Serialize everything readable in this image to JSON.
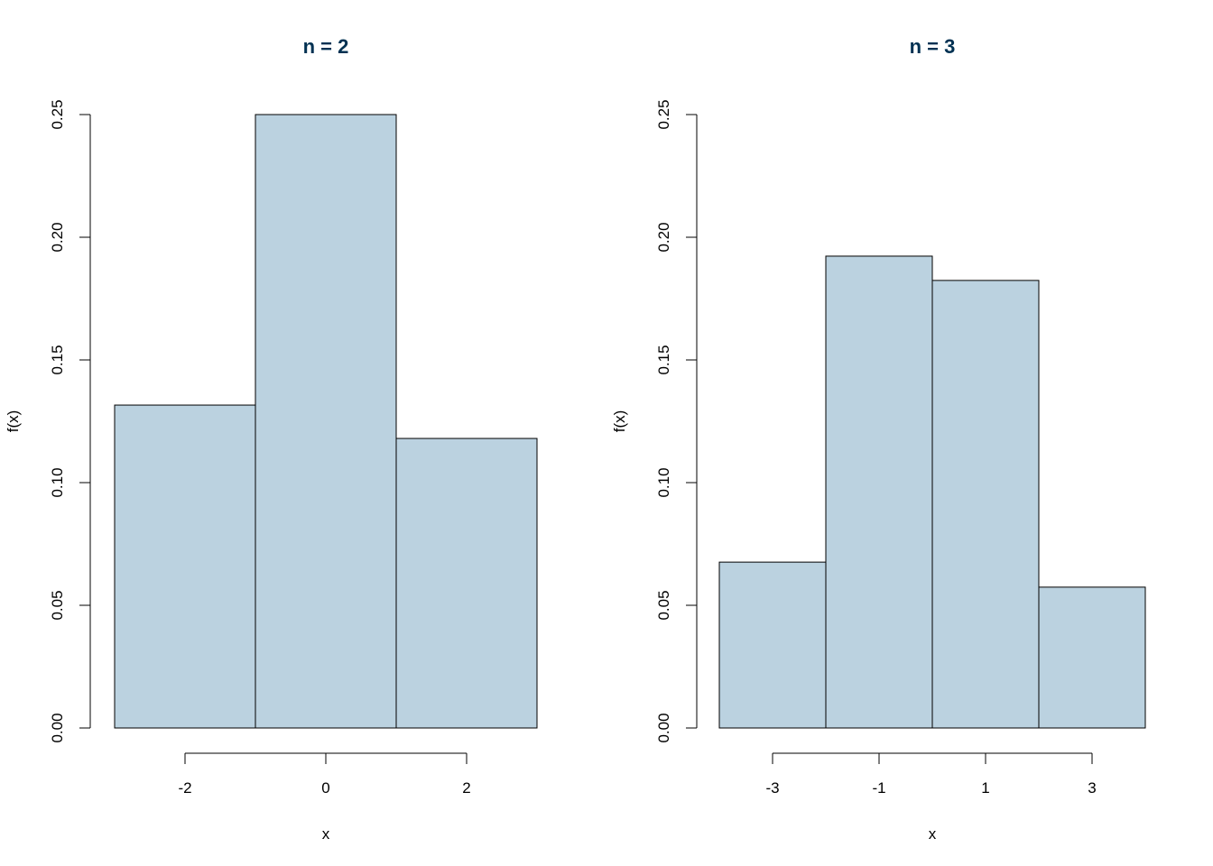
{
  "colors": {
    "bar_fill": "#bbd2e0",
    "bar_stroke": "#000000",
    "title": "#003152"
  },
  "chart_data": [
    {
      "type": "bar",
      "title": "n = 2",
      "xlabel": "x",
      "ylabel": "f(x)",
      "bin_edges": [
        -3,
        -1,
        1,
        3
      ],
      "values": [
        0.1316,
        0.25,
        0.118
      ],
      "xticks": [
        -2,
        0,
        2
      ],
      "xtick_labels": [
        "-2",
        "0",
        "2"
      ],
      "yticks": [
        0,
        0.05,
        0.1,
        0.15,
        0.2,
        0.25
      ],
      "ytick_labels": [
        "0.00",
        "0.05",
        "0.10",
        "0.15",
        "0.20",
        "0.25"
      ],
      "xlim": [
        -3,
        3
      ],
      "ylim": [
        0,
        0.25
      ],
      "grid": false
    },
    {
      "type": "bar",
      "title": "n = 3",
      "xlabel": "x",
      "ylabel": "f(x)",
      "bin_edges": [
        -4,
        -2,
        0,
        2,
        4
      ],
      "values": [
        0.0676,
        0.1923,
        0.1824,
        0.0574
      ],
      "xticks": [
        -3,
        -1,
        1,
        3
      ],
      "xtick_labels": [
        "-3",
        "-1",
        "1",
        "3"
      ],
      "yticks": [
        0,
        0.05,
        0.1,
        0.15,
        0.2,
        0.25
      ],
      "ytick_labels": [
        "0.00",
        "0.05",
        "0.10",
        "0.15",
        "0.20",
        "0.25"
      ],
      "xlim": [
        -4,
        4
      ],
      "ylim": [
        0,
        0.25
      ],
      "grid": false
    }
  ]
}
